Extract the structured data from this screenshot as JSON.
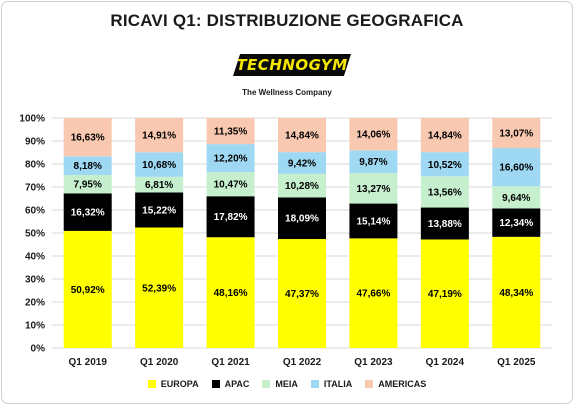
{
  "title": "RICAVI Q1: DISTRIBUZIONE GEOGRAFICA",
  "logo": {
    "text": "TECHNOGYM",
    "tagline": "The Wellness Company"
  },
  "chart_data": {
    "type": "bar",
    "stacked": true,
    "percent": true,
    "title": "RICAVI Q1: DISTRIBUZIONE GEOGRAFICA",
    "xlabel": "",
    "ylabel": "",
    "ylim": [
      0,
      100
    ],
    "y_ticks": [
      "0%",
      "10%",
      "20%",
      "30%",
      "40%",
      "50%",
      "60%",
      "70%",
      "80%",
      "90%",
      "100%"
    ],
    "grid": true,
    "legend_position": "bottom",
    "categories": [
      "Q1 2019",
      "Q1 2020",
      "Q1 2021",
      "Q1 2022",
      "Q1 2023",
      "Q1 2024",
      "Q1 2025"
    ],
    "series": [
      {
        "name": "EUROPA",
        "color": "#ffff00",
        "text_color": "#000000",
        "values": [
          50.92,
          52.39,
          48.16,
          47.37,
          47.66,
          47.19,
          48.34
        ],
        "labels": [
          "50,92%",
          "52,39%",
          "48,16%",
          "47,37%",
          "47,66%",
          "47,19%",
          "48,34%"
        ]
      },
      {
        "name": "APAC",
        "color": "#000000",
        "text_color": "#ffffff",
        "values": [
          16.32,
          15.22,
          17.82,
          18.09,
          15.14,
          13.88,
          12.34
        ],
        "labels": [
          "16,32%",
          "15,22%",
          "17,82%",
          "18,09%",
          "15,14%",
          "13,88%",
          "12,34%"
        ]
      },
      {
        "name": "MEIA",
        "color": "#c6efce",
        "text_color": "#000000",
        "values": [
          7.95,
          6.81,
          10.47,
          10.28,
          13.27,
          13.56,
          9.64
        ],
        "labels": [
          "7,95%",
          "6,81%",
          "10,47%",
          "10,28%",
          "13,27%",
          "13,56%",
          "9,64%"
        ]
      },
      {
        "name": "ITALIA",
        "color": "#9ed8f2",
        "text_color": "#000000",
        "values": [
          8.18,
          10.68,
          12.2,
          9.42,
          9.87,
          10.52,
          16.6
        ],
        "labels": [
          "8,18%",
          "10,68%",
          "12,20%",
          "9,42%",
          "9,87%",
          "10,52%",
          "16,60%"
        ]
      },
      {
        "name": "AMERICAS",
        "color": "#f9c8b0",
        "text_color": "#000000",
        "values": [
          16.63,
          14.91,
          11.35,
          14.84,
          14.06,
          14.84,
          13.07
        ],
        "labels": [
          "16,63%",
          "14,91%",
          "11,35%",
          "14,84%",
          "14,06%",
          "14,84%",
          "13,07%"
        ]
      }
    ]
  }
}
